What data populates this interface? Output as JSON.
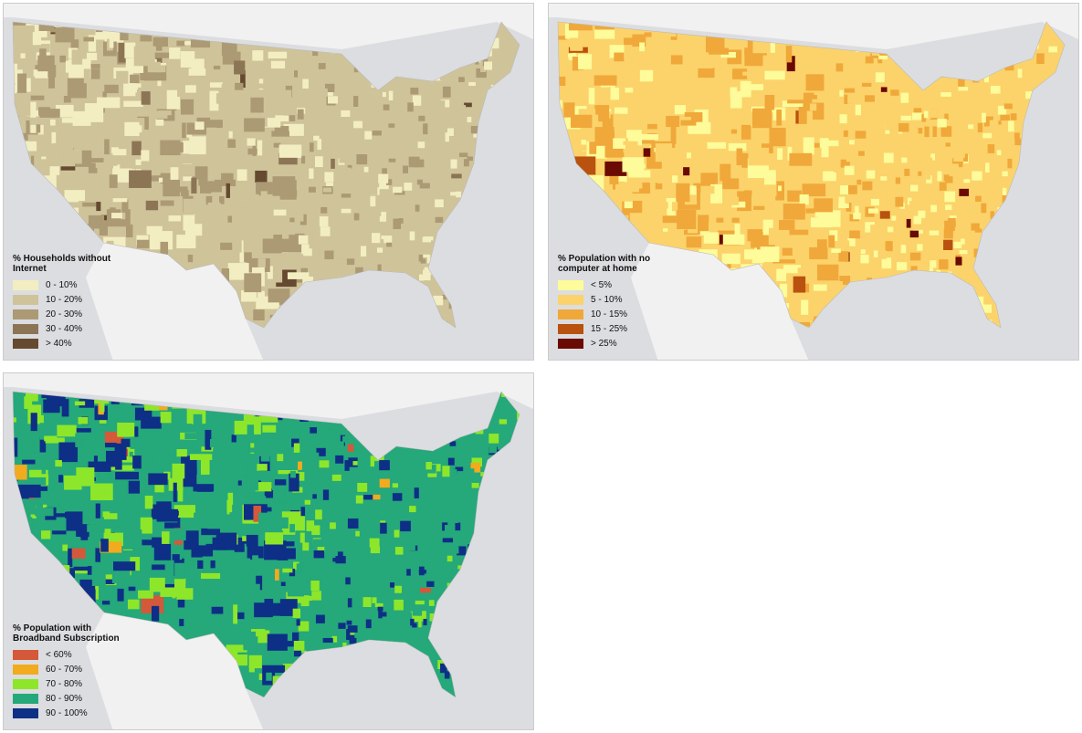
{
  "maps": [
    {
      "legend_title": "% Households without Internet",
      "legend": [
        {
          "label": "0 - 10%",
          "color": "#f3eec2"
        },
        {
          "label": "10 - 20%",
          "color": "#cfc39a"
        },
        {
          "label": "20 - 30%",
          "color": "#ab9a74"
        },
        {
          "label": "30 - 40%",
          "color": "#8c7555"
        },
        {
          "label": "> 40%",
          "color": "#654a30"
        }
      ]
    },
    {
      "legend_title": "% Population with no computer at home",
      "legend": [
        {
          "label": "< 5%",
          "color": "#fdfb9a"
        },
        {
          "label": "5 - 10%",
          "color": "#fbd36a"
        },
        {
          "label": "10 - 15%",
          "color": "#f0a83a"
        },
        {
          "label": "15 - 25%",
          "color": "#b9520f"
        },
        {
          "label": "> 25%",
          "color": "#6a0a02"
        }
      ]
    },
    {
      "legend_title": "% Population with Broadband Subscription",
      "legend": [
        {
          "label": "< 60%",
          "color": "#d4583a"
        },
        {
          "label": "60 - 70%",
          "color": "#f2aa1e"
        },
        {
          "label": "70 - 80%",
          "color": "#8ee62a"
        },
        {
          "label": "80 - 90%",
          "color": "#25a87a"
        },
        {
          "label": "90 - 100%",
          "color": "#0e2f86"
        }
      ]
    }
  ]
}
